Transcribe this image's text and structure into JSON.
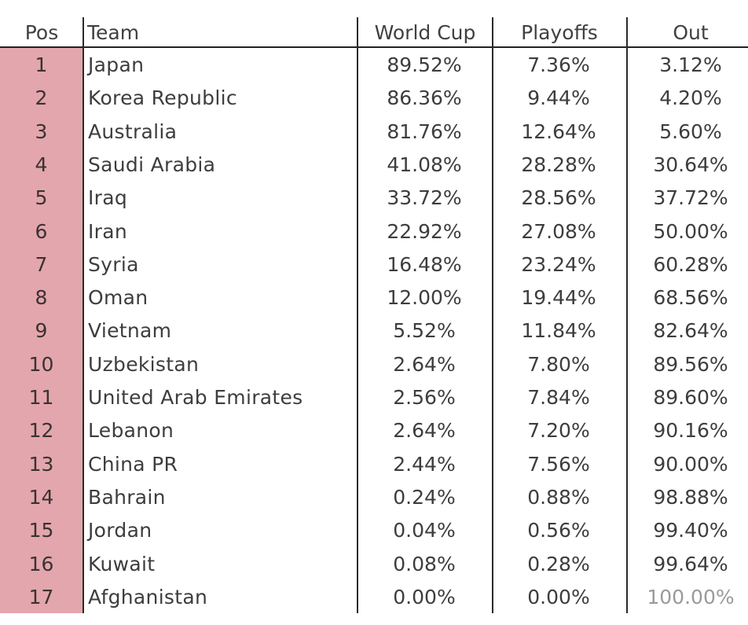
{
  "table": {
    "headers": {
      "pos": "Pos",
      "team": "Team",
      "world_cup": "World Cup",
      "playoffs": "Playoffs",
      "out": "Out"
    },
    "rows": [
      {
        "pos": "1",
        "team": "Japan",
        "world_cup": "89.52%",
        "playoffs": "7.36%",
        "out": "3.12%"
      },
      {
        "pos": "2",
        "team": "Korea Republic",
        "world_cup": "86.36%",
        "playoffs": "9.44%",
        "out": "4.20%"
      },
      {
        "pos": "3",
        "team": "Australia",
        "world_cup": "81.76%",
        "playoffs": "12.64%",
        "out": "5.60%"
      },
      {
        "pos": "4",
        "team": "Saudi Arabia",
        "world_cup": "41.08%",
        "playoffs": "28.28%",
        "out": "30.64%"
      },
      {
        "pos": "5",
        "team": "Iraq",
        "world_cup": "33.72%",
        "playoffs": "28.56%",
        "out": "37.72%"
      },
      {
        "pos": "6",
        "team": "Iran",
        "world_cup": "22.92%",
        "playoffs": "27.08%",
        "out": "50.00%"
      },
      {
        "pos": "7",
        "team": "Syria",
        "world_cup": "16.48%",
        "playoffs": "23.24%",
        "out": "60.28%"
      },
      {
        "pos": "8",
        "team": "Oman",
        "world_cup": "12.00%",
        "playoffs": "19.44%",
        "out": "68.56%"
      },
      {
        "pos": "9",
        "team": "Vietnam",
        "world_cup": "5.52%",
        "playoffs": "11.84%",
        "out": "82.64%"
      },
      {
        "pos": "10",
        "team": "Uzbekistan",
        "world_cup": "2.64%",
        "playoffs": "7.80%",
        "out": "89.56%"
      },
      {
        "pos": "11",
        "team": "United Arab Emirates",
        "world_cup": "2.56%",
        "playoffs": "7.84%",
        "out": "89.60%"
      },
      {
        "pos": "12",
        "team": "Lebanon",
        "world_cup": "2.64%",
        "playoffs": "7.20%",
        "out": "90.16%"
      },
      {
        "pos": "13",
        "team": "China PR",
        "world_cup": "2.44%",
        "playoffs": "7.56%",
        "out": "90.00%"
      },
      {
        "pos": "14",
        "team": "Bahrain",
        "world_cup": "0.24%",
        "playoffs": "0.88%",
        "out": "98.88%"
      },
      {
        "pos": "15",
        "team": "Jordan",
        "world_cup": "0.04%",
        "playoffs": "0.56%",
        "out": "99.40%"
      },
      {
        "pos": "16",
        "team": "Kuwait",
        "world_cup": "0.08%",
        "playoffs": "0.28%",
        "out": "99.64%"
      },
      {
        "pos": "17",
        "team": "Afghanistan",
        "world_cup": "0.00%",
        "playoffs": "0.00%",
        "out": "100.00%"
      }
    ]
  },
  "colors": {
    "pos_column_fill": "#e3a6ad",
    "grid_line": "#2a2a2a",
    "text": "#3d3d3d"
  }
}
